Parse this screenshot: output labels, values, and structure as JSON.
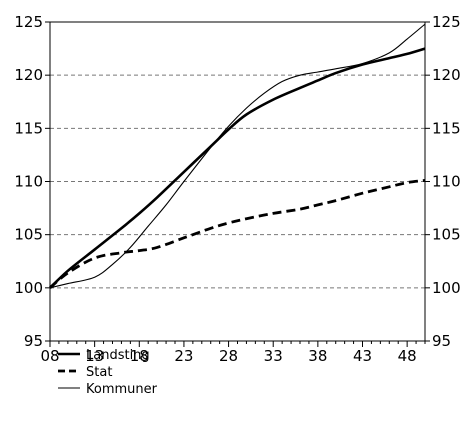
{
  "chart_data": {
    "type": "line",
    "title": "",
    "xlabel": "",
    "ylabel": "",
    "x_tick_labels": [
      "08",
      "13",
      "18",
      "23",
      "28",
      "33",
      "38",
      "43",
      "48"
    ],
    "x_ticks": [
      2008,
      2013,
      2018,
      2023,
      2028,
      2033,
      2038,
      2043,
      2048
    ],
    "xlim": [
      2008,
      2050
    ],
    "y_ticks": [
      95,
      100,
      105,
      110,
      115,
      120,
      125
    ],
    "ylim": [
      95,
      125
    ],
    "grid": "horizontal dashed",
    "legend_position": "bottom-left",
    "series": [
      {
        "name": "Landsting",
        "style": "thick-solid",
        "x": [
          2008,
          2010,
          2013,
          2016,
          2018,
          2020,
          2023,
          2026,
          2028,
          2030,
          2033,
          2036,
          2038,
          2040,
          2043,
          2046,
          2048,
          2050
        ],
        "values": [
          100.0,
          101.6,
          103.6,
          105.6,
          107.0,
          108.5,
          110.9,
          113.3,
          114.9,
          116.3,
          117.7,
          118.8,
          119.5,
          120.2,
          121.0,
          121.6,
          122.0,
          122.5
        ]
      },
      {
        "name": "Stat",
        "style": "thick-dashed",
        "x": [
          2008,
          2010,
          2013,
          2016,
          2018,
          2020,
          2023,
          2026,
          2028,
          2030,
          2033,
          2036,
          2038,
          2040,
          2043,
          2046,
          2048,
          2050
        ],
        "values": [
          100.0,
          101.4,
          102.8,
          103.3,
          103.5,
          103.8,
          104.7,
          105.6,
          106.1,
          106.5,
          107.0,
          107.4,
          107.8,
          108.2,
          108.9,
          109.5,
          109.9,
          110.1
        ]
      },
      {
        "name": "Kommuner",
        "style": "thin-solid",
        "x": [
          2008,
          2010,
          2013,
          2015,
          2017,
          2019,
          2021,
          2023,
          2026,
          2028,
          2030,
          2032,
          2034,
          2036,
          2038,
          2040,
          2043,
          2046,
          2048,
          2050
        ],
        "values": [
          100.0,
          100.4,
          101.0,
          102.2,
          103.8,
          105.8,
          107.8,
          110.0,
          113.2,
          115.2,
          116.9,
          118.3,
          119.4,
          120.0,
          120.3,
          120.6,
          121.1,
          122.1,
          123.4,
          124.8
        ]
      }
    ]
  }
}
